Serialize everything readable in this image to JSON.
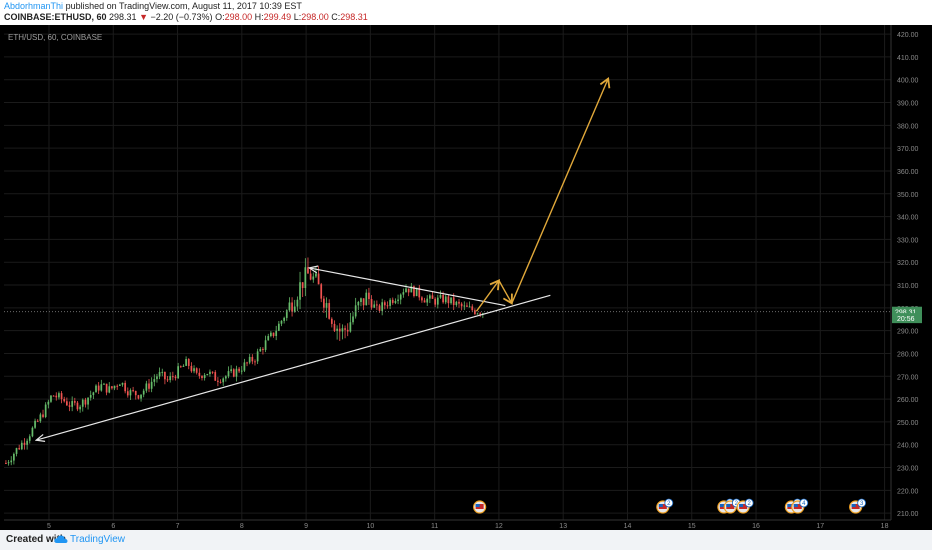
{
  "header": {
    "author": "AbdorhmanThi",
    "published_text": "published on TradingView.com, August 11, 2017 10:39 EST",
    "symbol": "COINBASE:ETHUSD, 60",
    "last": "298.31",
    "down_arrow": "▼",
    "change": "−2.20 (−0.73%)",
    "o_label": "O:",
    "o": "298.00",
    "h_label": "H:",
    "h": "299.49",
    "l_label": "L:",
    "l": "298.00",
    "c_label": "C:",
    "c": "298.31"
  },
  "footer": {
    "created_with": "Created with",
    "brand": "TradingView",
    "logo_icon": "cloud-logo-icon"
  },
  "colors": {
    "background": "#000000",
    "grid": "#1b1b1b",
    "candle_up": "#66bb6a",
    "candle_down": "#ef5350",
    "trendline": "#e8e8e8",
    "projection": "#e0a83a",
    "price_tag": "#3f8f5a",
    "scale_text": "#8a8a8a"
  },
  "chart_data": {
    "type": "candlestick",
    "title": "ETH/USD, 60, COINBASE",
    "y_range": [
      207,
      424
    ],
    "x_range": [
      4.3,
      18.1
    ],
    "y_ticks": [
      210,
      220,
      230,
      240,
      250,
      260,
      270,
      280,
      290,
      300,
      310,
      320,
      330,
      340,
      350,
      360,
      370,
      380,
      390,
      400,
      410,
      420
    ],
    "x_ticks": [
      5,
      6,
      7,
      8,
      9,
      10,
      11,
      12,
      13,
      14,
      15,
      16,
      17,
      18
    ],
    "last_price_label": "298.31",
    "last_price": 298.31,
    "second_tag_label": "20:56",
    "second_tag_value": 295.5,
    "grid": true,
    "price_path": [
      [
        4.33,
        232
      ],
      [
        4.5,
        238
      ],
      [
        4.65,
        243
      ],
      [
        4.8,
        249
      ],
      [
        4.95,
        256
      ],
      [
        5.05,
        262
      ],
      [
        5.2,
        260
      ],
      [
        5.35,
        257
      ],
      [
        5.5,
        258
      ],
      [
        5.65,
        262
      ],
      [
        5.8,
        266
      ],
      [
        5.95,
        264
      ],
      [
        6.1,
        268
      ],
      [
        6.25,
        263
      ],
      [
        6.4,
        262
      ],
      [
        6.55,
        266
      ],
      [
        6.7,
        271
      ],
      [
        6.85,
        268
      ],
      [
        7.0,
        272
      ],
      [
        7.15,
        276
      ],
      [
        7.3,
        270
      ],
      [
        7.45,
        272
      ],
      [
        7.6,
        269
      ],
      [
        7.75,
        270
      ],
      [
        7.9,
        272
      ],
      [
        8.05,
        275
      ],
      [
        8.2,
        278
      ],
      [
        8.35,
        284
      ],
      [
        8.5,
        289
      ],
      [
        8.65,
        296
      ],
      [
        8.8,
        304
      ],
      [
        8.95,
        312
      ],
      [
        9.05,
        315
      ],
      [
        9.15,
        311
      ],
      [
        9.3,
        303
      ],
      [
        9.45,
        293
      ],
      [
        9.55,
        289
      ],
      [
        9.65,
        292
      ],
      [
        9.8,
        300
      ],
      [
        9.95,
        305
      ],
      [
        10.1,
        299
      ],
      [
        10.25,
        302
      ],
      [
        10.4,
        305
      ],
      [
        10.55,
        309
      ],
      [
        10.7,
        307
      ],
      [
        10.85,
        304
      ],
      [
        11.0,
        303
      ],
      [
        11.15,
        304
      ],
      [
        11.3,
        302
      ],
      [
        11.45,
        300
      ],
      [
        11.6,
        299
      ],
      [
        11.75,
        298.31
      ]
    ],
    "trendlines": [
      {
        "name": "upper-resistance",
        "points": [
          [
            9.05,
            317.5
          ],
          [
            12.1,
            301
          ]
        ]
      },
      {
        "name": "lower-support",
        "points": [
          [
            4.8,
            242
          ],
          [
            12.8,
            305.5
          ]
        ]
      }
    ],
    "projection": [
      [
        11.65,
        298.5
      ],
      [
        12.0,
        312
      ],
      [
        12.2,
        302
      ],
      [
        13.7,
        400.5
      ]
    ],
    "events": [
      {
        "x": 11.7,
        "label": ""
      },
      {
        "x": 14.55,
        "label": "2"
      },
      {
        "x": 15.5,
        "label": "12"
      },
      {
        "x": 15.6,
        "label": "2"
      },
      {
        "x": 15.8,
        "label": "2"
      },
      {
        "x": 16.55,
        "label": "4"
      },
      {
        "x": 16.65,
        "label": "4"
      },
      {
        "x": 17.55,
        "label": "3"
      }
    ]
  }
}
